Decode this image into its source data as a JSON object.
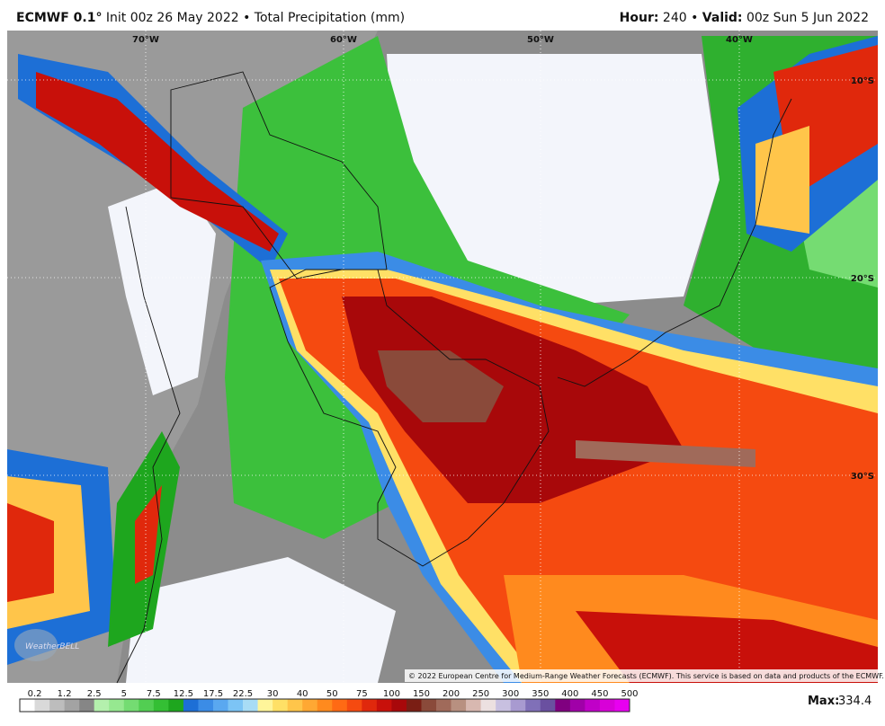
{
  "header": {
    "model": "ECMWF 0.1°",
    "info": "Init 00z 26 May 2022 • Total Precipitation (mm)",
    "hour_label": "Hour:",
    "hour": "240 •",
    "valid_label": "Valid:",
    "valid": "00z Sun 5 Jun 2022"
  },
  "map": {
    "lon_labels": [
      "70°W",
      "60°W",
      "50°W",
      "40°W"
    ],
    "lat_labels": [
      "10°S",
      "20°S",
      "30°S"
    ],
    "watermark": "WeatherBELL",
    "copyright": "© 2022 European Centre for Medium-Range Weather Forecasts (ECMWF). This service is based on data and products of the ECMWF."
  },
  "colorbar": {
    "labels": [
      0.2,
      1.2,
      2.5,
      5,
      7.5,
      12.5,
      17.5,
      22.5,
      30,
      40,
      50,
      75,
      100,
      150,
      200,
      250,
      300,
      350,
      400,
      450,
      500
    ],
    "colors": [
      "#ffffff",
      "#d9d9d9",
      "#bdbdbd",
      "#a3a3a3",
      "#868686",
      "#b4f0ad",
      "#96e890",
      "#74dc72",
      "#52ce52",
      "#34bf34",
      "#1ea61e",
      "#1d6fd6",
      "#3b8ce6",
      "#5aa8f0",
      "#7cc4f5",
      "#a8dcf5",
      "#fff59a",
      "#ffe066",
      "#ffc54a",
      "#ffa833",
      "#ff8a1e",
      "#ff6a14",
      "#f54a10",
      "#e0280c",
      "#c8100a",
      "#a8080a",
      "#7a1e14",
      "#8a4a3a",
      "#a06a5a",
      "#b89080",
      "#d8b8b0",
      "#ece0e0",
      "#c8c0e0",
      "#a89ad0",
      "#8070b8",
      "#6a50a0",
      "#800080",
      "#a000a8",
      "#c000c8",
      "#d800d8",
      "#e800f0"
    ]
  },
  "footer": {
    "max_label": "Max:",
    "max_value": "334.4"
  }
}
